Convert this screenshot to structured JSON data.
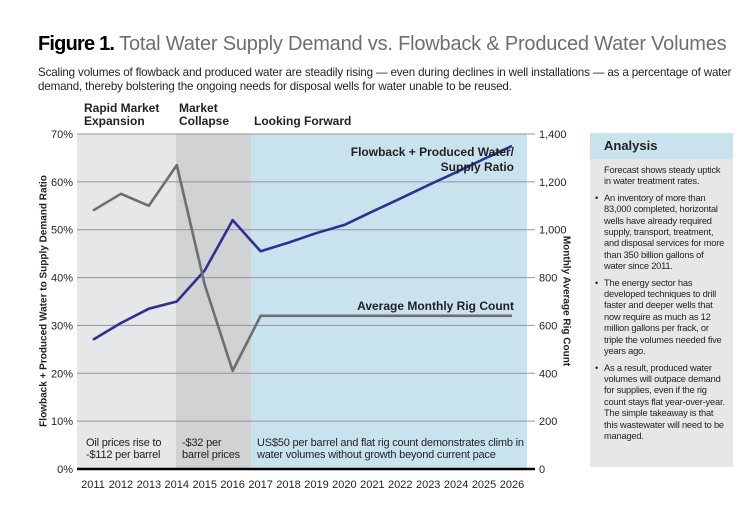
{
  "title": {
    "figure": "Figure 1.",
    "text": "Total Water Supply Demand vs. Flowback & Produced Water Volumes"
  },
  "subtitle": "Scaling volumes of flowback and produced water are steadily rising — even during declines in well installations — as a percentage of water demand, thereby bolstering the ongoing needs for disposal wells for water unable to be reused.",
  "periods": [
    {
      "label": "Rapid Market Expansion",
      "note": "Oil prices rise to -$112 per barrel",
      "color": "#e6e7e8"
    },
    {
      "label": "Market Collapse",
      "note": "-$32 per barrel prices",
      "color": "#d1d2d4"
    },
    {
      "label": "Looking Forward",
      "note": "US$50 per barrel and flat rig count demonstrates climb in water volumes without growth beyond current pace",
      "color": "#c8e3ee"
    }
  ],
  "analysis": {
    "heading": "Analysis",
    "intro": "Forecast shows steady uptick in water treatment rates.",
    "bullets": [
      "An inventory of more than 83,000 completed, horizontal wells have already required supply, transport, treatment, and disposal services for more than 350 billion gallons of water since 2011.",
      "The energy sector has developed techniques to drill faster and deeper wells that now require as much as 12 million gallons per frack, or triple the volumes needed five years ago.",
      "As a result, produced water volumes will outpace demand for supplies, even if the rig count stays flat year-over-year. The simple takeaway is that this wastewater will need to be managed."
    ]
  },
  "chart_data": {
    "type": "line",
    "x": [
      2011,
      2012,
      2013,
      2014,
      2015,
      2016,
      2017,
      2018,
      2019,
      2020,
      2021,
      2022,
      2023,
      2024,
      2025,
      2026
    ],
    "ylabel": "Flowback + Produced Water to Supply Demand Ratio",
    "y2label": "Monthly Average Rig Count",
    "ylim": [
      0,
      70
    ],
    "y2lim": [
      0,
      1400
    ],
    "yticks": [
      "0%",
      "10%",
      "20%",
      "30%",
      "40%",
      "50%",
      "60%",
      "70%"
    ],
    "y2ticks": [
      "0",
      "200",
      "400",
      "600",
      "800",
      "1,000",
      "1,200",
      "1,400"
    ],
    "grid": true,
    "series": [
      {
        "name": "Flowback + Produced Water/ Supply Ratio",
        "axis": "left",
        "color": "#2e3192",
        "values": [
          27,
          30.5,
          33.5,
          35,
          41.5,
          52,
          45.5,
          47.3,
          49.3,
          51,
          53.8,
          56.5,
          59.3,
          62,
          64.8,
          67.5
        ]
      },
      {
        "name": "Average Monthly Rig Count",
        "axis": "right",
        "color": "#6d6e71",
        "values": [
          1080,
          1150,
          1100,
          1270,
          770,
          410,
          640,
          640,
          640,
          640,
          640,
          640,
          640,
          640,
          640,
          640
        ]
      }
    ],
    "series_labels": {
      "ratio_line1": "Flowback + Produced Water/",
      "ratio_line2": "Supply Ratio",
      "rig": "Average Monthly Rig Count"
    }
  }
}
